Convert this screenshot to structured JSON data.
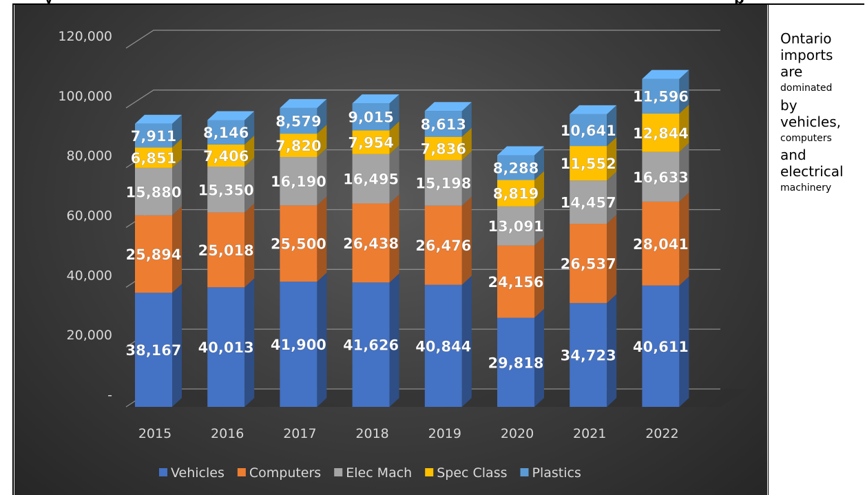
{
  "header": {
    "partial_title_left": "y",
    "partial_title_right": "p"
  },
  "side_note": {
    "lines": [
      {
        "text": "Ontario",
        "size": "big"
      },
      {
        "text": "imports",
        "size": "big"
      },
      {
        "text": "are",
        "size": "big"
      },
      {
        "text": "dominated",
        "size": "small"
      },
      {
        "text": "by",
        "size": "big"
      },
      {
        "text": "vehicles,",
        "size": "big"
      },
      {
        "text": "computers",
        "size": "small"
      },
      {
        "text": "and",
        "size": "big"
      },
      {
        "text": "electrical",
        "size": "big"
      },
      {
        "text": "machinery",
        "size": "small"
      }
    ]
  },
  "chart_data": {
    "type": "bar",
    "stacked": true,
    "three_d": true,
    "categories": [
      "2015",
      "2016",
      "2017",
      "2018",
      "2019",
      "2020",
      "2021",
      "2022"
    ],
    "series": [
      {
        "name": "Vehicles",
        "color": "#4472C4",
        "values": [
          38167,
          40013,
          41900,
          41626,
          40844,
          29818,
          34723,
          40611
        ]
      },
      {
        "name": "Computers",
        "color": "#ED7D31",
        "values": [
          25894,
          25018,
          25500,
          26438,
          26476,
          24156,
          26537,
          28041
        ]
      },
      {
        "name": "Elec Mach",
        "color": "#A5A5A5",
        "values": [
          15880,
          15350,
          16190,
          16495,
          15198,
          13091,
          14457,
          16633
        ]
      },
      {
        "name": "Spec Class",
        "color": "#FFC000",
        "values": [
          6851,
          7406,
          7820,
          7954,
          7836,
          8819,
          11552,
          12844
        ]
      },
      {
        "name": "Plastics",
        "color": "#5B9BD5",
        "values": [
          7911,
          8146,
          8579,
          9015,
          8613,
          8288,
          10641,
          11596
        ]
      }
    ],
    "y_ticks": [
      "-",
      "20,000",
      "40,000",
      "60,000",
      "80,000",
      "100,000",
      "120,000"
    ],
    "y_tick_values": [
      0,
      20000,
      40000,
      60000,
      80000,
      100000,
      120000
    ],
    "ylim": [
      0,
      120000
    ],
    "grid": true,
    "legend": "bottom",
    "background": "#404040",
    "text_color": "#d9d9d9",
    "label_color": "#ffffff"
  }
}
